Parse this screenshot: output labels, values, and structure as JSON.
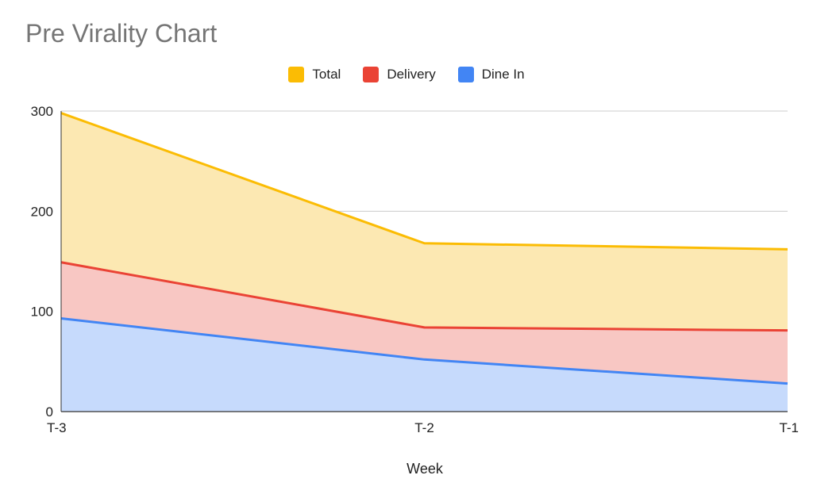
{
  "chart_data": {
    "type": "area",
    "title": "Pre Virality Chart",
    "xlabel": "Week",
    "ylabel": "",
    "categories": [
      "T-3",
      "T-2",
      "T-1"
    ],
    "ylim": [
      0,
      300
    ],
    "yticks": [
      0,
      100,
      200,
      300
    ],
    "grid": true,
    "legend_position": "top-center",
    "series": [
      {
        "name": "Total",
        "values": [
          298,
          168,
          162
        ],
        "color": "#fbbc04",
        "fill": "#fce8b2"
      },
      {
        "name": "Delivery",
        "values": [
          149,
          84,
          81
        ],
        "color": "#ea4335",
        "fill": "#f8c7c3"
      },
      {
        "name": "Dine In",
        "values": [
          93,
          52,
          28
        ],
        "color": "#4285f4",
        "fill": "#c6dafc"
      }
    ]
  }
}
